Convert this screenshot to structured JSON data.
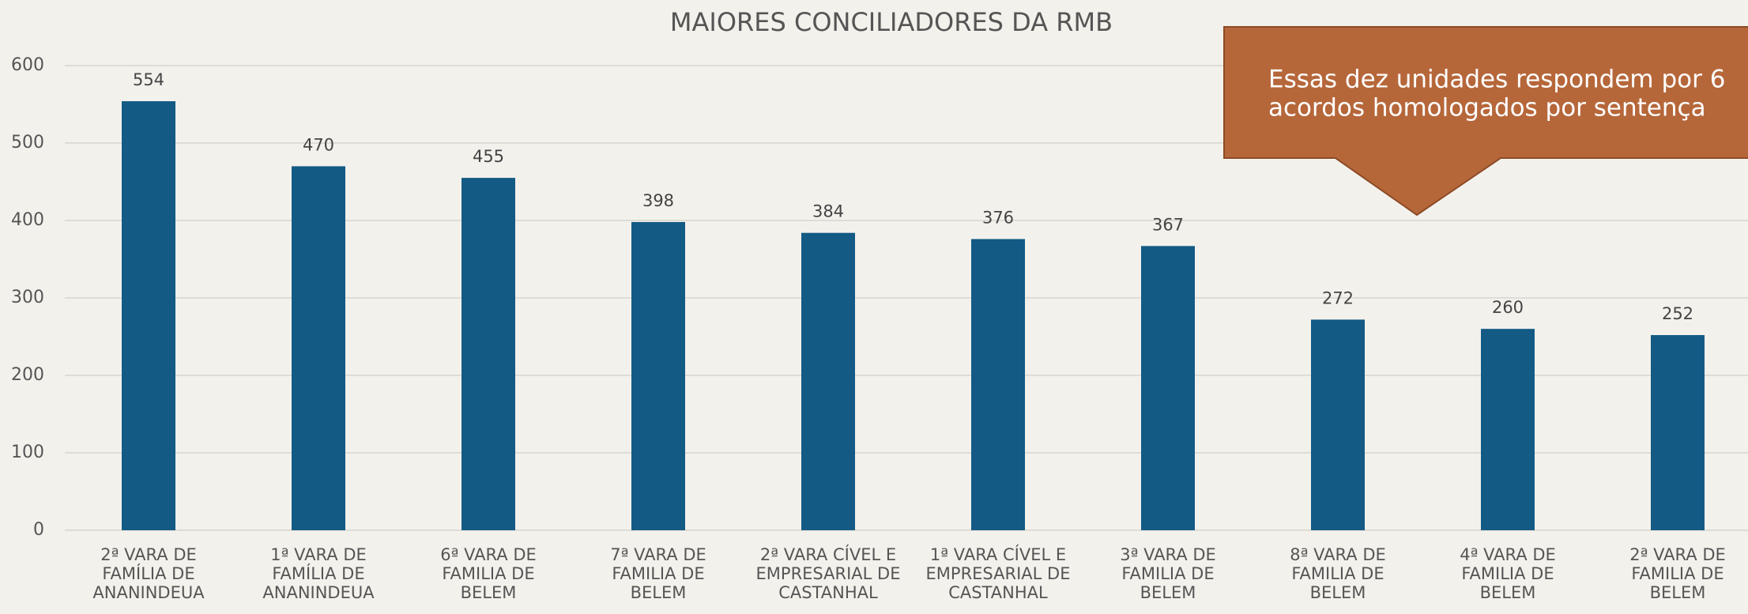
{
  "chart_data": {
    "type": "bar",
    "title": "MAIORES CONCILIADORES DA RMB",
    "categories": [
      "2ª VARA DE\nFAMÍLIA DE\nANANINDEUA",
      "1ª VARA DE\nFAMÍLIA DE\nANANINDEUA",
      "6ª VARA DE\nFAMILIA DE\nBELEM",
      "7ª VARA DE\nFAMILIA DE\nBELEM",
      "2ª VARA CÍVEL E\nEMPRESARIAL DE\nCASTANHAL",
      "1ª VARA CÍVEL E\nEMPRESARIAL DE\nCASTANHAL",
      "3ª VARA DE\nFAMILIA DE\nBELEM",
      "8ª VARA DE\nFAMILIA DE\nBELEM",
      "4ª VARA DE\nFAMILIA DE\nBELEM",
      "2ª VARA DE\nFAMILIA DE\nBELEM"
    ],
    "values": [
      554,
      470,
      455,
      398,
      384,
      376,
      367,
      272,
      260,
      252
    ],
    "color": "#135a85",
    "ylim": [
      0,
      600
    ],
    "yticks": [
      0,
      100,
      200,
      300,
      400,
      500,
      600
    ],
    "grid": true,
    "annotation": [
      "Essas dez unidades respondem por 6",
      "acordos homologados por sentença"
    ]
  }
}
